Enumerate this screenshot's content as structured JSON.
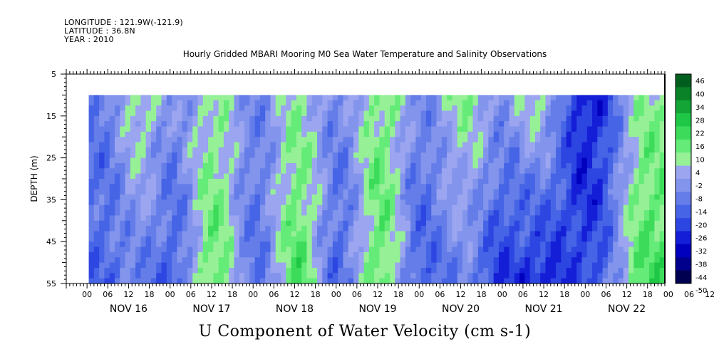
{
  "header": {
    "longitude": "LONGITUDE : 121.9W(-121.9)",
    "latitude": "LATITUDE : 36.8N",
    "year": "YEAR : 2010"
  },
  "chart_data": {
    "type": "heatmap",
    "title": "Hourly Gridded MBARI Mooring M0 Sea Water Temperature and Salinity Observations",
    "xlabel": "U Component of Water Velocity (cm s-1)",
    "ylabel": "DEPTH (m)",
    "x_units": "hours",
    "xlim": [
      "2010-11-15 18:00",
      "2010-11-22 23:00"
    ],
    "ylim": [
      5,
      55
    ],
    "y_inverted": true,
    "yticks": [
      "5",
      "15",
      "25",
      "35",
      "45",
      "55"
    ],
    "xtick_labels": [
      "00",
      "06",
      "12",
      "18",
      "00",
      "06",
      "12",
      "18",
      "00",
      "06",
      "12",
      "18",
      "00",
      "06",
      "12",
      "18",
      "00",
      "06",
      "12",
      "18",
      "00",
      "06",
      "12",
      "18",
      "00",
      "06",
      "12",
      "18",
      "00",
      "06",
      "12",
      "18"
    ],
    "day_labels": [
      "NOV 16",
      "NOV 17",
      "NOV 18",
      "NOV 19",
      "NOV 20",
      "NOV 21",
      "NOV 22"
    ],
    "data_depth_range": [
      10,
      55
    ],
    "data_time_range": [
      "2010-11-16 00:30",
      "2010-11-22 23:00"
    ],
    "colorbar": {
      "levels": [
        -50,
        -44,
        -38,
        -32,
        -26,
        -20,
        -14,
        -8,
        -2,
        4,
        10,
        16,
        22,
        28,
        34,
        40,
        46
      ],
      "labels": [
        "46",
        "40",
        "34",
        "28",
        "22",
        "16",
        "10",
        "4",
        "-2",
        "-8",
        "-14",
        "-20",
        "-26",
        "-32",
        "-38",
        "-44",
        "-50"
      ],
      "colors_low": "#000050",
      "colors_mid_neg": "#9aa8f0",
      "colors_mid_pos": "#98f0a0",
      "colors_high": "#003010"
    },
    "column_profiles_approx": [
      {
        "time": "Nov 16 03",
        "surface": -12,
        "bottom": -16
      },
      {
        "time": "Nov 16 15",
        "surface": 8,
        "bottom": -12
      },
      {
        "time": "Nov 17 00",
        "surface": -6,
        "bottom": -18
      },
      {
        "time": "Nov 17 12",
        "surface": 6,
        "bottom": 14
      },
      {
        "time": "Nov 18 00",
        "surface": -8,
        "bottom": -14
      },
      {
        "time": "Nov 18 12",
        "surface": 6,
        "bottom": 16
      },
      {
        "time": "Nov 19 00",
        "surface": -8,
        "bottom": -16
      },
      {
        "time": "Nov 19 12",
        "surface": 10,
        "bottom": 14
      },
      {
        "time": "Nov 20 00",
        "surface": -8,
        "bottom": -18
      },
      {
        "time": "Nov 20 12",
        "surface": 8,
        "bottom": -10
      },
      {
        "time": "Nov 21 00",
        "surface": -4,
        "bottom": -26
      },
      {
        "time": "Nov 21 09",
        "surface": 6,
        "bottom": -30
      },
      {
        "time": "Nov 22 00",
        "surface": -30,
        "bottom": -22
      },
      {
        "time": "Nov 22 18",
        "surface": 8,
        "bottom": 18
      }
    ]
  }
}
